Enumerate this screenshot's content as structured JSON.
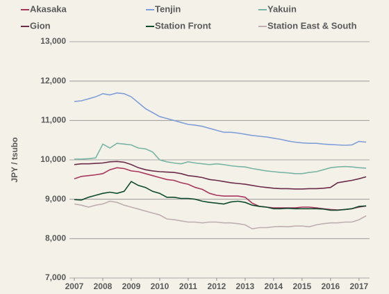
{
  "chart_data": {
    "type": "line",
    "y_label": "JPY / tsubo",
    "x": [
      2007,
      2007.25,
      2007.5,
      2007.75,
      2008,
      2008.25,
      2008.5,
      2008.75,
      2009,
      2009.25,
      2009.5,
      2009.75,
      2010,
      2010.25,
      2010.5,
      2010.75,
      2011,
      2011.25,
      2011.5,
      2011.75,
      2012,
      2012.25,
      2012.5,
      2012.75,
      2013,
      2013.25,
      2013.5,
      2013.75,
      2014,
      2014.25,
      2014.5,
      2014.75,
      2015,
      2015.25,
      2015.5,
      2015.75,
      2016,
      2016.25,
      2016.5,
      2016.75,
      2017,
      2017.25
    ],
    "series": [
      {
        "name": "Akasaka",
        "color": "#a8355e",
        "values": [
          9520,
          9580,
          9600,
          9620,
          9650,
          9750,
          9800,
          9780,
          9720,
          9700,
          9650,
          9600,
          9550,
          9500,
          9480,
          9420,
          9380,
          9300,
          9250,
          9150,
          9100,
          9080,
          9080,
          9080,
          9050,
          8900,
          8820,
          8800,
          8780,
          8780,
          8780,
          8780,
          8800,
          8800,
          8780,
          8760,
          8740,
          8730,
          8740,
          8760,
          8800,
          8830
        ]
      },
      {
        "name": "Tenjin",
        "color": "#7f9fd8",
        "values": [
          11480,
          11500,
          11550,
          11600,
          11680,
          11650,
          11700,
          11680,
          11600,
          11450,
          11300,
          11200,
          11100,
          11050,
          11000,
          10950,
          10900,
          10880,
          10850,
          10800,
          10750,
          10700,
          10700,
          10680,
          10650,
          10620,
          10600,
          10580,
          10550,
          10520,
          10480,
          10450,
          10430,
          10420,
          10420,
          10400,
          10390,
          10380,
          10370,
          10380,
          10470,
          10450
        ]
      },
      {
        "name": "Yakuin",
        "color": "#78b5a5",
        "values": [
          10020,
          10020,
          10030,
          10050,
          10400,
          10300,
          10420,
          10400,
          10380,
          10300,
          10280,
          10200,
          10000,
          9950,
          9920,
          9900,
          9950,
          9920,
          9900,
          9880,
          9900,
          9880,
          9850,
          9830,
          9820,
          9780,
          9750,
          9720,
          9700,
          9680,
          9670,
          9650,
          9650,
          9680,
          9700,
          9750,
          9800,
          9820,
          9830,
          9820,
          9800,
          9790
        ]
      },
      {
        "name": "Gion",
        "color": "#6a2a4a",
        "values": [
          9880,
          9900,
          9900,
          9910,
          9920,
          9950,
          9960,
          9940,
          9880,
          9800,
          9750,
          9720,
          9700,
          9690,
          9680,
          9650,
          9600,
          9580,
          9550,
          9500,
          9480,
          9450,
          9420,
          9400,
          9380,
          9350,
          9320,
          9300,
          9280,
          9270,
          9270,
          9260,
          9260,
          9270,
          9270,
          9280,
          9300,
          9420,
          9450,
          9480,
          9520,
          9570
        ]
      },
      {
        "name": "Station Front",
        "color": "#0c4a2b",
        "values": [
          8990,
          8980,
          9050,
          9100,
          9150,
          9180,
          9150,
          9200,
          9450,
          9350,
          9300,
          9200,
          9150,
          9050,
          9050,
          9020,
          9020,
          9000,
          8950,
          8920,
          8900,
          8880,
          8930,
          8950,
          8920,
          8850,
          8820,
          8800,
          8760,
          8760,
          8770,
          8760,
          8760,
          8760,
          8760,
          8750,
          8720,
          8720,
          8740,
          8760,
          8820,
          8830
        ]
      },
      {
        "name": "Station East & South",
        "color": "#bfaeb0",
        "values": [
          8880,
          8850,
          8800,
          8850,
          8880,
          8950,
          8920,
          8850,
          8800,
          8750,
          8700,
          8650,
          8600,
          8500,
          8480,
          8450,
          8420,
          8420,
          8400,
          8420,
          8420,
          8400,
          8400,
          8380,
          8350,
          8250,
          8280,
          8280,
          8300,
          8310,
          8300,
          8320,
          8320,
          8300,
          8350,
          8380,
          8400,
          8400,
          8420,
          8420,
          8480,
          8580
        ]
      }
    ],
    "xlim": [
      2006.83,
      2017.37
    ],
    "xticks": [
      2007,
      2008,
      2009,
      2010,
      2011,
      2012,
      2013,
      2014,
      2015,
      2016,
      2017
    ],
    "ylim": [
      7000,
      13000
    ],
    "yticks": [
      {
        "value": 7000,
        "label": "7,000"
      },
      {
        "value": 8000,
        "label": "8,000"
      },
      {
        "value": 9000,
        "label": "9,000"
      },
      {
        "value": 10000,
        "label": "10,000"
      },
      {
        "value": 11000,
        "label": "11,000"
      },
      {
        "value": 12000,
        "label": "12,000"
      },
      {
        "value": 13000,
        "label": "13,000"
      }
    ],
    "grid": true
  }
}
